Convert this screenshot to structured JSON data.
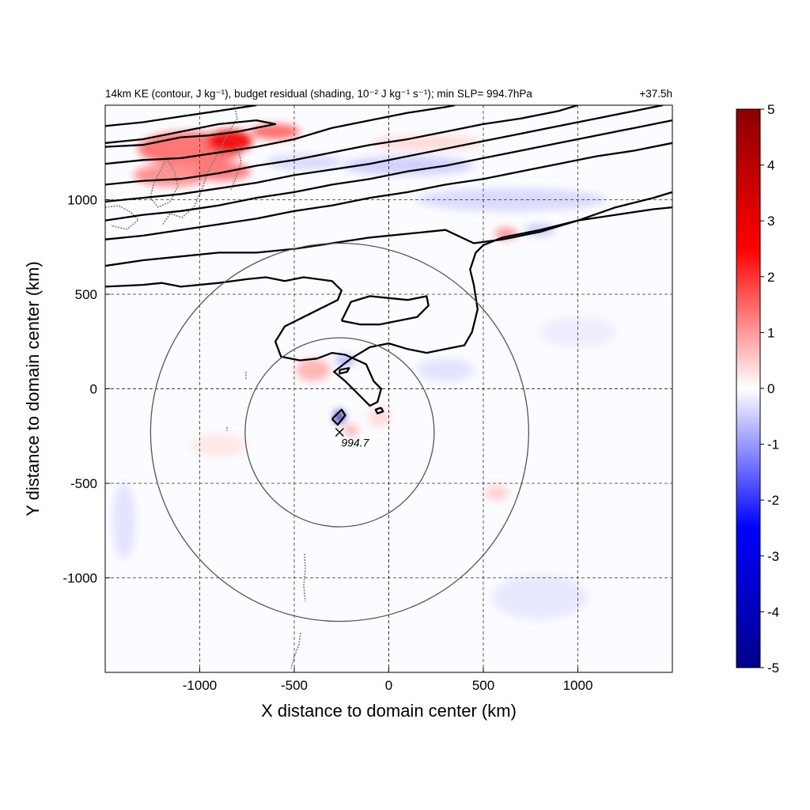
{
  "chart_data": {
    "type": "heatmap",
    "title_left": "14km KE (contour, J kg⁻¹), budget residual (shading, 10⁻² J kg⁻¹ s⁻¹); min SLP= 994.7hPa",
    "title_right": "+37.5h",
    "xlabel": "X distance to domain center (km)",
    "ylabel": "Y distance to domain center (km)",
    "xlim": [
      -1500,
      1500
    ],
    "ylim": [
      -1500,
      1500
    ],
    "xticks": [
      -1000,
      -500,
      0,
      500,
      1000
    ],
    "yticks": [
      -1000,
      -500,
      0,
      500,
      1000
    ],
    "grid": true,
    "colorbar": {
      "min": -5,
      "max": 5,
      "ticks": [
        5,
        4,
        3,
        2,
        1,
        0,
        -1,
        -2,
        -3,
        -4,
        -5
      ],
      "colormap": [
        "#00008b",
        "#0000ff",
        "#ffffff",
        "#ff0000",
        "#8b0000"
      ]
    },
    "center_marker": {
      "x": -260,
      "y": -230,
      "label": "994.7"
    },
    "range_rings_km": [
      500,
      1000
    ],
    "shading_patches": [
      {
        "x": -1050,
        "y": 1270,
        "rx": 280,
        "ry": 90,
        "value": 1.5
      },
      {
        "x": -840,
        "y": 1310,
        "rx": 120,
        "ry": 60,
        "value": 2.8
      },
      {
        "x": -600,
        "y": 1360,
        "rx": 130,
        "ry": 40,
        "value": 1.6
      },
      {
        "x": -1150,
        "y": 1130,
        "rx": 200,
        "ry": 60,
        "value": 1.2
      },
      {
        "x": -880,
        "y": 1150,
        "rx": 150,
        "ry": 50,
        "value": 1.4
      },
      {
        "x": -450,
        "y": 1200,
        "rx": 200,
        "ry": 40,
        "value": -0.4
      },
      {
        "x": 100,
        "y": 1180,
        "rx": 350,
        "ry": 50,
        "value": -0.5
      },
      {
        "x": 650,
        "y": 1000,
        "rx": 500,
        "ry": 60,
        "value": -0.4
      },
      {
        "x": 200,
        "y": 1300,
        "rx": 300,
        "ry": 40,
        "value": 0.4
      },
      {
        "x": 620,
        "y": 820,
        "rx": 60,
        "ry": 30,
        "value": 1.2
      },
      {
        "x": 800,
        "y": 840,
        "rx": 80,
        "ry": 30,
        "value": -0.6
      },
      {
        "x": -400,
        "y": 100,
        "rx": 90,
        "ry": 60,
        "value": 0.8
      },
      {
        "x": -230,
        "y": 150,
        "rx": 50,
        "ry": 30,
        "value": -0.8
      },
      {
        "x": -260,
        "y": -150,
        "rx": 25,
        "ry": 35,
        "value": -4.5
      },
      {
        "x": -200,
        "y": -220,
        "rx": 40,
        "ry": 30,
        "value": 0.8
      },
      {
        "x": -50,
        "y": -150,
        "rx": 60,
        "ry": 50,
        "value": 0.4
      },
      {
        "x": 570,
        "y": -550,
        "rx": 60,
        "ry": 40,
        "value": 0.5
      },
      {
        "x": -1400,
        "y": -700,
        "rx": 60,
        "ry": 200,
        "value": -0.3
      },
      {
        "x": 800,
        "y": -1100,
        "rx": 250,
        "ry": 120,
        "value": -0.25
      },
      {
        "x": -900,
        "y": -300,
        "rx": 150,
        "ry": 60,
        "value": 0.25
      },
      {
        "x": 300,
        "y": 100,
        "rx": 150,
        "ry": 60,
        "value": -0.3
      },
      {
        "x": 1000,
        "y": 300,
        "rx": 200,
        "ry": 80,
        "value": -0.2
      }
    ],
    "ke_contours": [
      [
        [
          -1500,
          1390
        ],
        [
          -1300,
          1410
        ],
        [
          -1100,
          1440
        ],
        [
          -900,
          1470
        ],
        [
          -700,
          1500
        ]
      ],
      [
        [
          -1500,
          1280
        ],
        [
          -1300,
          1290
        ],
        [
          -1100,
          1330
        ],
        [
          -950,
          1340
        ],
        [
          -800,
          1360
        ],
        [
          -650,
          1390
        ],
        [
          -600,
          1400
        ],
        [
          -700,
          1420
        ],
        [
          -900,
          1400
        ],
        [
          -1100,
          1360
        ],
        [
          -1300,
          1320
        ],
        [
          -1500,
          1300
        ]
      ],
      [
        [
          -1500,
          1190
        ],
        [
          -1300,
          1210
        ],
        [
          -1100,
          1220
        ],
        [
          -900,
          1250
        ],
        [
          -700,
          1280
        ],
        [
          -500,
          1320
        ],
        [
          -300,
          1380
        ],
        [
          -100,
          1420
        ],
        [
          100,
          1460
        ],
        [
          300,
          1490
        ],
        [
          350,
          1500
        ]
      ],
      [
        [
          -1500,
          1080
        ],
        [
          -1300,
          1100
        ],
        [
          -1100,
          1110
        ],
        [
          -900,
          1140
        ],
        [
          -700,
          1180
        ],
        [
          -500,
          1210
        ],
        [
          -300,
          1250
        ],
        [
          -100,
          1290
        ],
        [
          100,
          1320
        ],
        [
          300,
          1360
        ],
        [
          500,
          1400
        ],
        [
          700,
          1430
        ],
        [
          900,
          1470
        ],
        [
          1000,
          1500
        ]
      ],
      [
        [
          -1500,
          990
        ],
        [
          -1300,
          1010
        ],
        [
          -1100,
          1030
        ],
        [
          -900,
          1060
        ],
        [
          -700,
          1090
        ],
        [
          -500,
          1130
        ],
        [
          -300,
          1160
        ],
        [
          -100,
          1190
        ],
        [
          100,
          1230
        ],
        [
          300,
          1270
        ],
        [
          500,
          1310
        ],
        [
          700,
          1350
        ],
        [
          900,
          1390
        ],
        [
          1100,
          1430
        ],
        [
          1300,
          1470
        ],
        [
          1450,
          1500
        ]
      ],
      [
        [
          -1500,
          890
        ],
        [
          -1300,
          920
        ],
        [
          -1100,
          940
        ],
        [
          -900,
          970
        ],
        [
          -700,
          1010
        ],
        [
          -500,
          1040
        ],
        [
          -300,
          1080
        ],
        [
          -100,
          1110
        ],
        [
          100,
          1150
        ],
        [
          300,
          1180
        ],
        [
          500,
          1220
        ],
        [
          700,
          1260
        ],
        [
          900,
          1300
        ],
        [
          1100,
          1340
        ],
        [
          1300,
          1380
        ],
        [
          1500,
          1420
        ]
      ],
      [
        [
          -1500,
          790
        ],
        [
          -1300,
          810
        ],
        [
          -1100,
          840
        ],
        [
          -900,
          870
        ],
        [
          -700,
          900
        ],
        [
          -500,
          940
        ],
        [
          -300,
          970
        ],
        [
          -100,
          1010
        ],
        [
          100,
          1040
        ],
        [
          300,
          1080
        ],
        [
          500,
          1110
        ],
        [
          700,
          1150
        ],
        [
          900,
          1190
        ],
        [
          1100,
          1230
        ],
        [
          1300,
          1260
        ],
        [
          1500,
          1300
        ]
      ],
      [
        [
          -1500,
          650
        ],
        [
          -1300,
          680
        ],
        [
          -1100,
          700
        ],
        [
          -900,
          720
        ],
        [
          -700,
          720
        ],
        [
          -500,
          740
        ],
        [
          -300,
          770
        ],
        [
          -100,
          800
        ],
        [
          100,
          820
        ],
        [
          300,
          840
        ],
        [
          450,
          770
        ],
        [
          600,
          790
        ],
        [
          800,
          830
        ],
        [
          1000,
          890
        ],
        [
          1200,
          960
        ],
        [
          1400,
          1010
        ],
        [
          1500,
          1040
        ]
      ],
      [
        [
          -1500,
          540
        ],
        [
          -1300,
          550
        ],
        [
          -1200,
          560
        ],
        [
          -1100,
          540
        ],
        [
          -900,
          560
        ],
        [
          -750,
          580
        ],
        [
          -650,
          590
        ],
        [
          -550,
          570
        ],
        [
          -450,
          590
        ],
        [
          -300,
          570
        ],
        [
          -250,
          520
        ],
        [
          -270,
          470
        ],
        [
          -350,
          430
        ],
        [
          -450,
          380
        ],
        [
          -550,
          330
        ],
        [
          -600,
          250
        ],
        [
          -570,
          170
        ],
        [
          -470,
          150
        ],
        [
          -380,
          160
        ],
        [
          -300,
          190
        ],
        [
          -230,
          180
        ],
        [
          -120,
          130
        ],
        [
          -80,
          40
        ],
        [
          -40,
          0
        ],
        [
          -60,
          -70
        ],
        [
          -100,
          -90
        ],
        [
          -150,
          -40
        ],
        [
          -230,
          40
        ],
        [
          -290,
          90
        ],
        [
          -200,
          160
        ],
        [
          -100,
          220
        ],
        [
          0,
          240
        ],
        [
          100,
          210
        ],
        [
          200,
          190
        ],
        [
          300,
          210
        ],
        [
          400,
          230
        ],
        [
          440,
          300
        ],
        [
          470,
          420
        ],
        [
          450,
          550
        ],
        [
          430,
          630
        ],
        [
          460,
          720
        ],
        [
          500,
          760
        ],
        [
          600,
          800
        ],
        [
          800,
          840
        ],
        [
          1000,
          890
        ],
        [
          1200,
          920
        ],
        [
          1400,
          950
        ],
        [
          1500,
          960
        ]
      ],
      [
        [
          -250,
          360
        ],
        [
          -200,
          460
        ],
        [
          -100,
          490
        ],
        [
          0,
          480
        ],
        [
          100,
          470
        ],
        [
          200,
          490
        ],
        [
          210,
          440
        ],
        [
          150,
          380
        ],
        [
          50,
          360
        ],
        [
          -50,
          340
        ],
        [
          -150,
          340
        ],
        [
          -250,
          360
        ]
      ],
      [
        [
          -260,
          100
        ],
        [
          -210,
          110
        ],
        [
          -220,
          90
        ],
        [
          -260,
          80
        ],
        [
          -260,
          100
        ]
      ],
      [
        [
          -40,
          -100
        ],
        [
          -30,
          -120
        ],
        [
          -60,
          -130
        ],
        [
          -70,
          -110
        ],
        [
          -40,
          -100
        ]
      ],
      [
        [
          -300,
          -160
        ],
        [
          -250,
          -110
        ],
        [
          -230,
          -140
        ],
        [
          -270,
          -190
        ],
        [
          -300,
          -160
        ]
      ]
    ]
  }
}
